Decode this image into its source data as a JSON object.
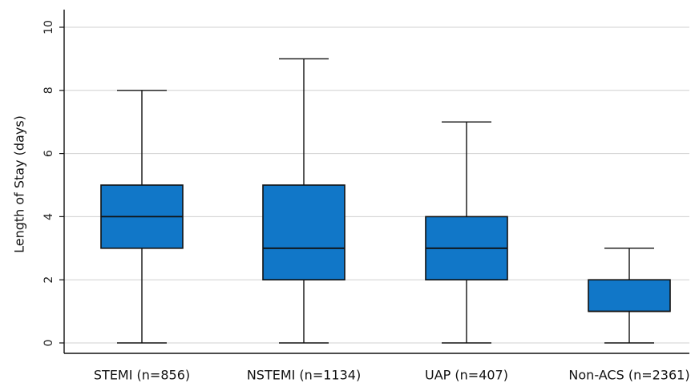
{
  "chart_data": {
    "type": "box",
    "categories": [
      "STEMI (n=856)",
      "NSTEMI (n=1134)",
      "UAP (n=407)",
      "Non-ACS (n=2361)"
    ],
    "series": [
      {
        "boxes": [
          {
            "whisker_low": 0,
            "q1": 3,
            "median": 4,
            "q3": 5,
            "whisker_high": 8
          },
          {
            "whisker_low": 0,
            "q1": 2,
            "median": 3,
            "q3": 5,
            "whisker_high": 9
          },
          {
            "whisker_low": 0,
            "q1": 2,
            "median": 3,
            "q3": 4,
            "whisker_high": 7
          },
          {
            "whisker_low": 0,
            "q1": 1,
            "median": 1,
            "q3": 2,
            "whisker_high": 3
          }
        ]
      }
    ],
    "ylabel": "Length of Stay (days)",
    "xlabel": "",
    "ylim": [
      0,
      10
    ],
    "yticks": [
      0,
      2,
      4,
      6,
      8,
      10
    ],
    "ytick_labels": [
      "0",
      "2",
      "4",
      "6",
      "8",
      "10"
    ],
    "grid": true,
    "colors": {
      "box_fill": "#1177C8",
      "box_stroke": "#111111",
      "grid": "#D0D0D0",
      "axis": "#111111"
    }
  }
}
